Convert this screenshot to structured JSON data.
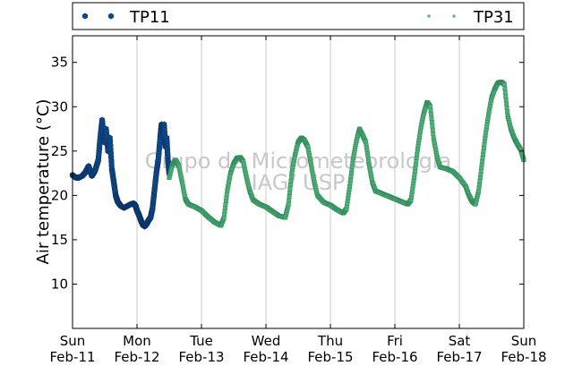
{
  "chart_data": {
    "type": "scatter",
    "title": "",
    "ylabel": "Air temperature (°C)",
    "xlabel": "",
    "ylim": [
      5,
      38
    ],
    "xlim": [
      0,
      7
    ],
    "yticks": [
      10,
      15,
      20,
      25,
      30,
      35
    ],
    "xticks": [
      {
        "x": 0,
        "day": "Sun",
        "date": "Feb-11"
      },
      {
        "x": 1,
        "day": "Mon",
        "date": "Feb-12"
      },
      {
        "x": 2,
        "day": "Tue",
        "date": "Feb-13"
      },
      {
        "x": 3,
        "day": "Wed",
        "date": "Feb-14"
      },
      {
        "x": 4,
        "day": "Thu",
        "date": "Feb-15"
      },
      {
        "x": 5,
        "day": "Fri",
        "date": "Feb-16"
      },
      {
        "x": 6,
        "day": "Sat",
        "date": "Feb-17"
      },
      {
        "x": 7,
        "day": "Sun",
        "date": "Feb-18"
      }
    ],
    "grid": "vertical",
    "legend_position": "top",
    "watermark": [
      "Grupo de Micrometeorologia",
      "IAG/ USP"
    ],
    "series": [
      {
        "name": "TP11",
        "color": "#0d4a8c",
        "marker": "hexagon",
        "points": [
          [
            0.0,
            22.3
          ],
          [
            0.05,
            22.0
          ],
          [
            0.1,
            22.0
          ],
          [
            0.15,
            22.2
          ],
          [
            0.2,
            22.6
          ],
          [
            0.25,
            23.3
          ],
          [
            0.3,
            22.2
          ],
          [
            0.35,
            22.8
          ],
          [
            0.4,
            24.0
          ],
          [
            0.43,
            26.5
          ],
          [
            0.46,
            28.5
          ],
          [
            0.49,
            26.0
          ],
          [
            0.52,
            27.5
          ],
          [
            0.55,
            25.0
          ],
          [
            0.58,
            26.5
          ],
          [
            0.61,
            23.0
          ],
          [
            0.64,
            21.5
          ],
          [
            0.67,
            20.0
          ],
          [
            0.7,
            19.3
          ],
          [
            0.75,
            18.8
          ],
          [
            0.8,
            18.6
          ],
          [
            0.85,
            18.8
          ],
          [
            0.9,
            19.0
          ],
          [
            0.95,
            19.1
          ],
          [
            0.98,
            18.8
          ],
          [
            1.0,
            18.3
          ],
          [
            1.03,
            17.8
          ],
          [
            1.06,
            17.2
          ],
          [
            1.09,
            16.7
          ],
          [
            1.12,
            16.5
          ],
          [
            1.15,
            16.8
          ],
          [
            1.18,
            17.2
          ],
          [
            1.21,
            17.5
          ],
          [
            1.24,
            18.5
          ],
          [
            1.27,
            20.5
          ],
          [
            1.3,
            22.5
          ],
          [
            1.33,
            24.0
          ],
          [
            1.36,
            26.5
          ],
          [
            1.38,
            28.0
          ],
          [
            1.4,
            27.0
          ],
          [
            1.42,
            28.0
          ],
          [
            1.44,
            25.5
          ],
          [
            1.46,
            26.5
          ],
          [
            1.48,
            24.0
          ],
          [
            1.5,
            22.5
          ],
          [
            1.52,
            23.5
          ]
        ]
      },
      {
        "name": "TP31",
        "color": "#4db37a",
        "marker": "square",
        "points": [
          [
            1.5,
            22.0
          ],
          [
            1.55,
            23.5
          ],
          [
            1.6,
            24.0
          ],
          [
            1.65,
            23.3
          ],
          [
            1.7,
            21.5
          ],
          [
            1.75,
            19.6
          ],
          [
            1.8,
            19.0
          ],
          [
            1.9,
            18.7
          ],
          [
            2.0,
            18.3
          ],
          [
            2.1,
            17.6
          ],
          [
            2.2,
            17.0
          ],
          [
            2.3,
            16.6
          ],
          [
            2.35,
            17.5
          ],
          [
            2.4,
            20.5
          ],
          [
            2.45,
            22.5
          ],
          [
            2.5,
            23.6
          ],
          [
            2.55,
            24.2
          ],
          [
            2.6,
            24.3
          ],
          [
            2.65,
            23.8
          ],
          [
            2.7,
            22.0
          ],
          [
            2.75,
            20.5
          ],
          [
            2.8,
            19.5
          ],
          [
            2.9,
            19.0
          ],
          [
            3.0,
            18.7
          ],
          [
            3.1,
            18.2
          ],
          [
            3.2,
            17.7
          ],
          [
            3.3,
            17.5
          ],
          [
            3.35,
            19.0
          ],
          [
            3.4,
            22.5
          ],
          [
            3.45,
            24.5
          ],
          [
            3.5,
            26.0
          ],
          [
            3.55,
            26.5
          ],
          [
            3.6,
            26.2
          ],
          [
            3.65,
            25.5
          ],
          [
            3.7,
            23.5
          ],
          [
            3.75,
            21.5
          ],
          [
            3.8,
            20.0
          ],
          [
            3.9,
            19.2
          ],
          [
            4.0,
            18.9
          ],
          [
            4.1,
            18.4
          ],
          [
            4.2,
            18.0
          ],
          [
            4.25,
            18.5
          ],
          [
            4.3,
            21.0
          ],
          [
            4.35,
            24.0
          ],
          [
            4.4,
            26.0
          ],
          [
            4.45,
            27.5
          ],
          [
            4.5,
            26.8
          ],
          [
            4.55,
            26.0
          ],
          [
            4.6,
            23.5
          ],
          [
            4.65,
            21.5
          ],
          [
            4.7,
            20.5
          ],
          [
            4.8,
            20.2
          ],
          [
            4.9,
            19.9
          ],
          [
            5.0,
            19.6
          ],
          [
            5.1,
            19.3
          ],
          [
            5.2,
            19.0
          ],
          [
            5.25,
            19.5
          ],
          [
            5.3,
            22.0
          ],
          [
            5.35,
            25.0
          ],
          [
            5.4,
            27.5
          ],
          [
            5.45,
            29.3
          ],
          [
            5.5,
            30.5
          ],
          [
            5.55,
            30.0
          ],
          [
            5.6,
            26.5
          ],
          [
            5.65,
            24.5
          ],
          [
            5.7,
            23.2
          ],
          [
            5.8,
            23.0
          ],
          [
            5.9,
            22.7
          ],
          [
            6.0,
            22.0
          ],
          [
            6.1,
            21.0
          ],
          [
            6.15,
            20.0
          ],
          [
            6.2,
            19.3
          ],
          [
            6.25,
            19.0
          ],
          [
            6.3,
            20.5
          ],
          [
            6.35,
            23.5
          ],
          [
            6.4,
            26.5
          ],
          [
            6.45,
            29.0
          ],
          [
            6.5,
            31.0
          ],
          [
            6.55,
            32.0
          ],
          [
            6.6,
            32.7
          ],
          [
            6.65,
            32.8
          ],
          [
            6.7,
            32.5
          ],
          [
            6.75,
            29.0
          ],
          [
            6.8,
            27.5
          ],
          [
            6.85,
            26.5
          ],
          [
            6.9,
            25.8
          ],
          [
            6.95,
            25.2
          ],
          [
            7.0,
            24.0
          ]
        ]
      }
    ]
  }
}
